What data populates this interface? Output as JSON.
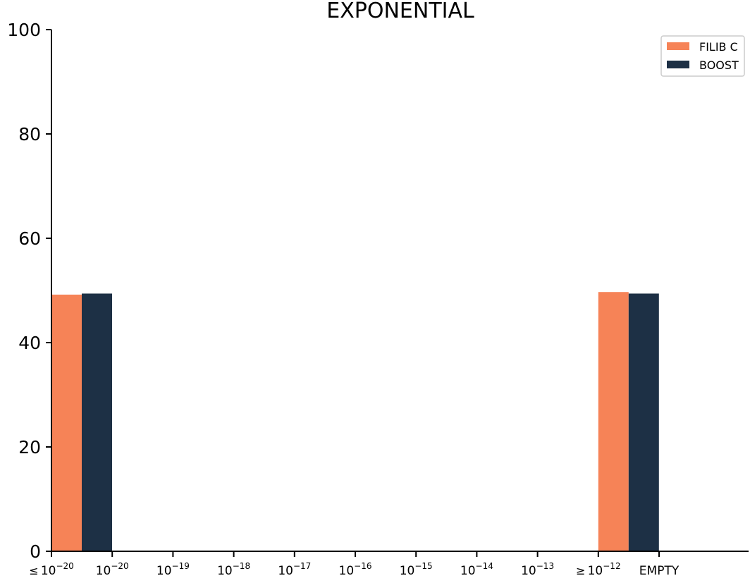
{
  "chart_data": {
    "type": "bar",
    "title": "EXPONENTIAL",
    "xlabel": "",
    "ylabel": "",
    "ylim": [
      0,
      100
    ],
    "yticks": [
      0,
      20,
      40,
      60,
      80,
      100
    ],
    "grid": false,
    "legend_position": "top-right",
    "categories": [
      {
        "prefix": "≤",
        "base": "10",
        "exp": "−20"
      },
      {
        "prefix": "",
        "base": "10",
        "exp": "−20"
      },
      {
        "prefix": "",
        "base": "10",
        "exp": "−19"
      },
      {
        "prefix": "",
        "base": "10",
        "exp": "−18"
      },
      {
        "prefix": "",
        "base": "10",
        "exp": "−17"
      },
      {
        "prefix": "",
        "base": "10",
        "exp": "−16"
      },
      {
        "prefix": "",
        "base": "10",
        "exp": "−15"
      },
      {
        "prefix": "",
        "base": "10",
        "exp": "−14"
      },
      {
        "prefix": "",
        "base": "10",
        "exp": "−13"
      },
      {
        "prefix": "≥",
        "base": "10",
        "exp": "−12"
      },
      {
        "prefix": "",
        "base": "EMPTY",
        "exp": ""
      }
    ],
    "series": [
      {
        "name": "FILIB C",
        "color": "#f68357",
        "values": [
          49.2,
          0,
          0,
          0,
          0,
          0,
          0,
          0,
          0,
          49.7,
          0
        ]
      },
      {
        "name": "BOOST",
        "color": "#1d3045",
        "values": [
          49.4,
          0,
          0,
          0,
          0,
          0,
          0,
          0,
          0,
          49.4,
          0
        ]
      }
    ]
  }
}
